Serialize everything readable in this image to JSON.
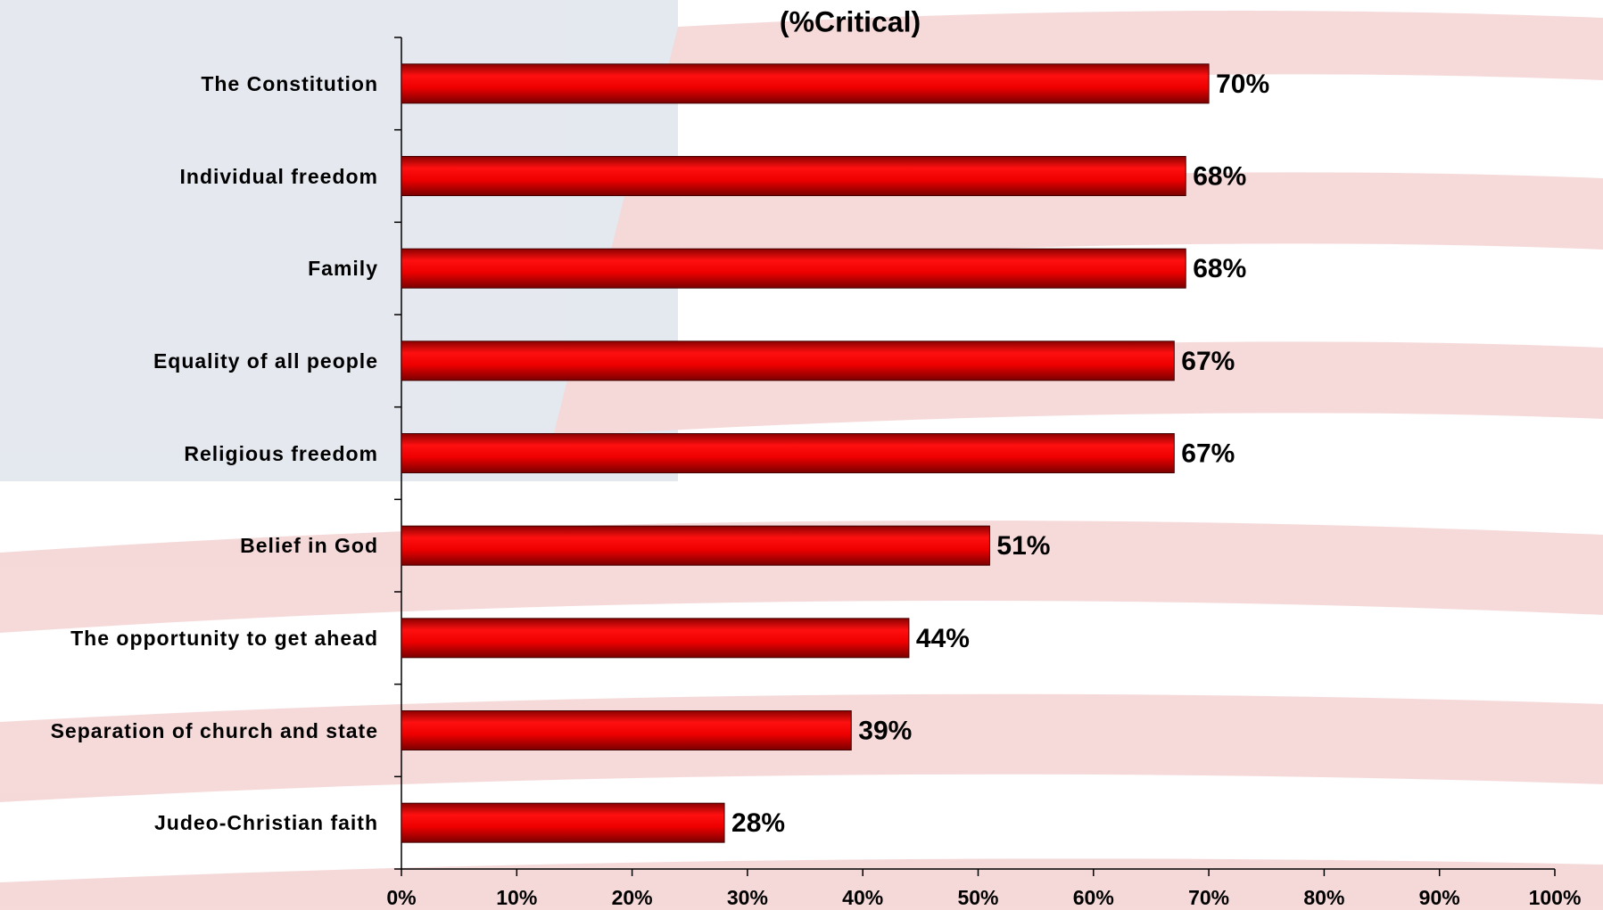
{
  "chart_data": {
    "type": "bar",
    "orientation": "horizontal",
    "title": "(%Critical)",
    "categories": [
      "The Constitution",
      "Individual freedom",
      "Family",
      "Equality of all people",
      "Religious freedom",
      "Belief in God",
      "The opportunity to get ahead",
      "Separation of church and state",
      "Judeo-Christian faith"
    ],
    "values": [
      70,
      68,
      68,
      67,
      67,
      51,
      44,
      39,
      28
    ],
    "value_labels": [
      "70%",
      "68%",
      "68%",
      "67%",
      "67%",
      "51%",
      "44%",
      "39%",
      "28%"
    ],
    "color": "#e00000",
    "xlim": [
      0,
      100
    ],
    "xticks": [
      {
        "value": 0,
        "label": "0%"
      },
      {
        "value": 10,
        "label": "10%"
      },
      {
        "value": 20,
        "label": "20%"
      },
      {
        "value": 30,
        "label": "30%"
      },
      {
        "value": 40,
        "label": "40%"
      },
      {
        "value": 50,
        "label": "50%"
      },
      {
        "value": 60,
        "label": "60%"
      },
      {
        "value": 70,
        "label": "70%"
      },
      {
        "value": 80,
        "label": "80%"
      },
      {
        "value": 90,
        "label": "90%"
      },
      {
        "value": 100,
        "label": "100%"
      }
    ],
    "grid": false
  }
}
